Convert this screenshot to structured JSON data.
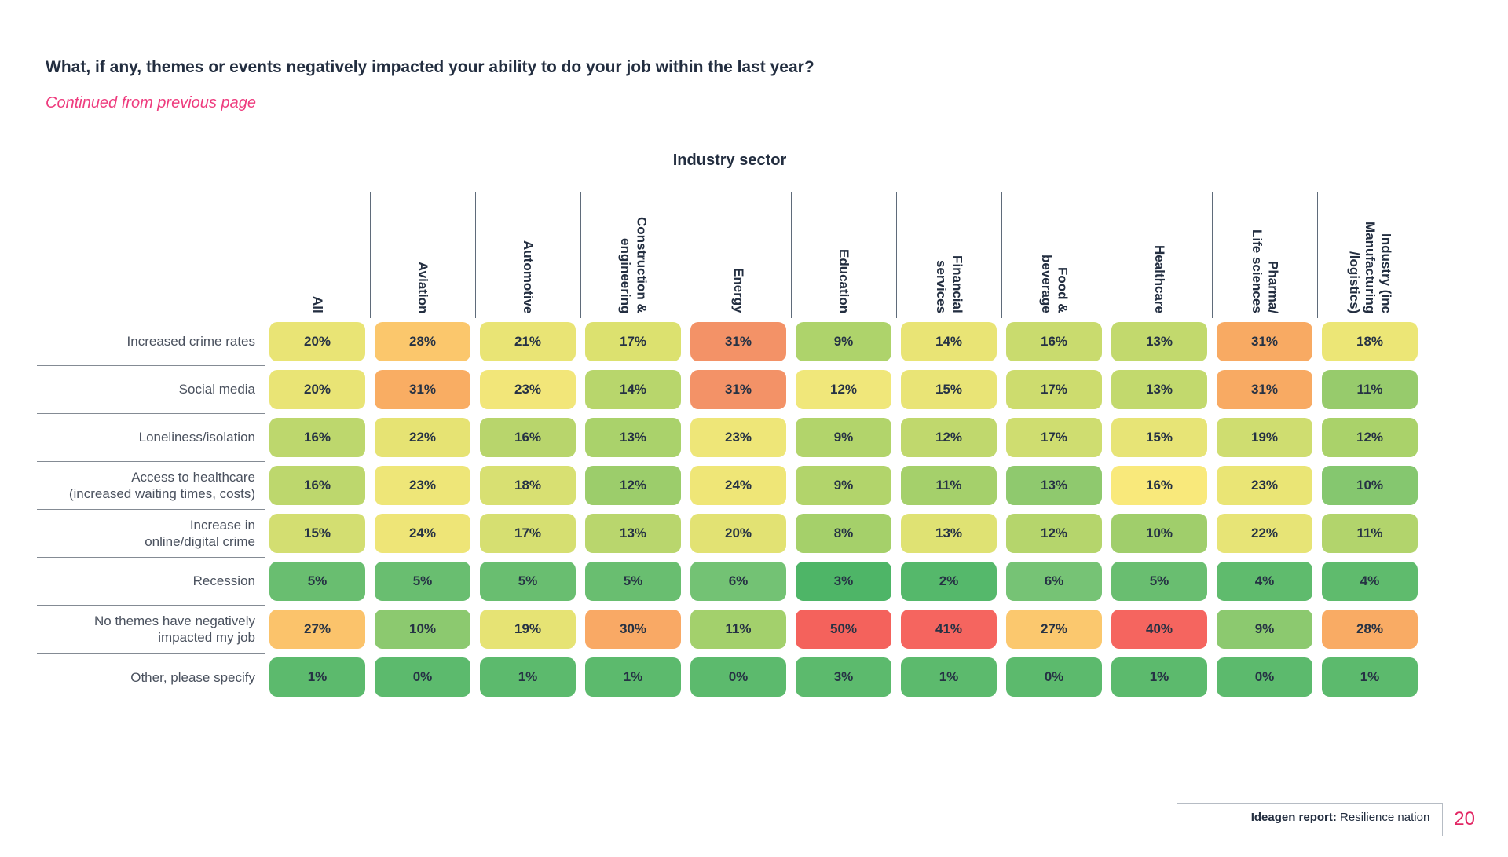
{
  "header": {
    "title": "What, if any, themes or events negatively impacted your ability to do your job within the last year?",
    "subtitle": "Continued from previous page"
  },
  "colors": {
    "title_navy": "#232e40",
    "subtitle_pink": "#ee3c7e",
    "page_number_pink": "#e22764",
    "row_label_gray": "#4a515e",
    "separator_gray": "#848b94"
  },
  "chart_data": {
    "type": "heatmap",
    "axis_title": "Industry sector",
    "columns": [
      "All",
      "Aviation",
      "Automotive",
      "Construction &\nengineering",
      "Energy",
      "Education",
      "Financial\nservices",
      "Food &\nbeverage",
      "Healthcare",
      "Pharma/\nLife sciences",
      "Industry (inc\nManufacturing\n/logistics)"
    ],
    "rows": [
      {
        "label": "Increased crime rates",
        "values": [
          "20%",
          "28%",
          "21%",
          "17%",
          "31%",
          "9%",
          "14%",
          "16%",
          "13%",
          "31%",
          "18%"
        ],
        "colors": [
          "#e9e475",
          "#fbc76c",
          "#e9e475",
          "#dce16f",
          "#f39267",
          "#aed36b",
          "#e9e475",
          "#c9db6e",
          "#c2d96d",
          "#f8aa63",
          "#ece676"
        ]
      },
      {
        "label": "Social media",
        "values": [
          "20%",
          "31%",
          "23%",
          "14%",
          "31%",
          "12%",
          "15%",
          "17%",
          "13%",
          "31%",
          "11%"
        ],
        "colors": [
          "#e9e475",
          "#f9ad63",
          "#f2e679",
          "#b8d66c",
          "#f39267",
          "#f0e77a",
          "#e9e476",
          "#cddc6e",
          "#c2d96d",
          "#f8aa63",
          "#97cb6c"
        ]
      },
      {
        "label": "Loneliness/isolation",
        "values": [
          "16%",
          "22%",
          "16%",
          "13%",
          "23%",
          "9%",
          "12%",
          "17%",
          "15%",
          "19%",
          "12%"
        ],
        "colors": [
          "#bdd76d",
          "#e6e373",
          "#b8d56c",
          "#aad26b",
          "#eee678",
          "#b2d46b",
          "#c0d86d",
          "#cfdd70",
          "#e7e476",
          "#cfdd70",
          "#aad26a"
        ]
      },
      {
        "label": "Access to healthcare\n(increased waiting times, costs)",
        "values": [
          "16%",
          "23%",
          "18%",
          "12%",
          "24%",
          "9%",
          "11%",
          "13%",
          "16%",
          "23%",
          "10%"
        ],
        "colors": [
          "#bdd76d",
          "#eee678",
          "#d8e072",
          "#9ccd6b",
          "#efe677",
          "#b2d46b",
          "#a5d06b",
          "#8fc96e",
          "#f9e97b",
          "#eae575",
          "#85c76f"
        ]
      },
      {
        "label": "Increase in\nonline/digital crime",
        "values": [
          "15%",
          "24%",
          "17%",
          "13%",
          "20%",
          "8%",
          "13%",
          "12%",
          "10%",
          "22%",
          "11%"
        ],
        "colors": [
          "#d3de71",
          "#eee577",
          "#d6df71",
          "#b9d66d",
          "#e2e273",
          "#a5d06a",
          "#dfe273",
          "#b5d56c",
          "#a0ce6b",
          "#e7e476",
          "#b2d46c"
        ]
      },
      {
        "label": "Recession",
        "values": [
          "5%",
          "5%",
          "5%",
          "5%",
          "6%",
          "3%",
          "2%",
          "6%",
          "5%",
          "4%",
          "4%"
        ],
        "colors": [
          "#69be70",
          "#69be70",
          "#69be70",
          "#69be70",
          "#73c274",
          "#4eb567",
          "#55b86b",
          "#76c375",
          "#69be70",
          "#5fbb6d",
          "#5fbb6d"
        ]
      },
      {
        "label": "No themes have negatively\nimpacted my job",
        "values": [
          "27%",
          "10%",
          "19%",
          "30%",
          "11%",
          "50%",
          "41%",
          "27%",
          "40%",
          "9%",
          "28%"
        ],
        "colors": [
          "#fbc36b",
          "#8cc96f",
          "#e6e374",
          "#f9a965",
          "#a3d06c",
          "#f4625c",
          "#f5655f",
          "#fbc86e",
          "#f5655f",
          "#8cc96f",
          "#f9ab64"
        ]
      },
      {
        "label": "Other, please specify",
        "values": [
          "1%",
          "0%",
          "1%",
          "1%",
          "0%",
          "3%",
          "1%",
          "0%",
          "1%",
          "0%",
          "1%"
        ],
        "colors": [
          "#5cba6d",
          "#5cba6d",
          "#5cba6d",
          "#5cba6d",
          "#5cba6d",
          "#5cba6d",
          "#5cba6d",
          "#5cba6d",
          "#5cba6d",
          "#5cba6d",
          "#5cba6d"
        ]
      }
    ]
  },
  "footer": {
    "report_label_bold": "Ideagen report:",
    "report_label_rest": "Resilience nation",
    "page_number": "20"
  }
}
